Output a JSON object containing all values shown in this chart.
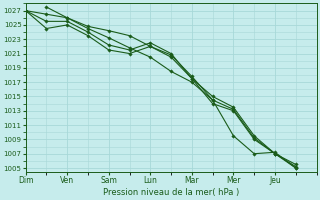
{
  "xlabel": "Pression niveau de la mer( hPa )",
  "background_color": "#c6ecec",
  "grid_color": "#a8d8d8",
  "line_color": "#1a5c1a",
  "ylim": [
    1004.5,
    1028
  ],
  "yticks": [
    1005,
    1007,
    1009,
    1011,
    1013,
    1015,
    1017,
    1019,
    1021,
    1023,
    1025,
    1027
  ],
  "x_days": [
    "Dim",
    "Ven",
    "Sam",
    "Lun",
    "Mar",
    "Mer",
    "Jeu"
  ],
  "x_day_positions": [
    0,
    44,
    88,
    132,
    176,
    220,
    264
  ],
  "xlim_data": [
    0,
    308
  ],
  "series": [
    {
      "x": [
        0,
        22,
        44,
        66,
        88,
        110,
        132,
        154,
        176,
        198,
        220,
        242,
        264,
        286
      ],
      "y": [
        1027,
        1026.5,
        1026,
        1024.8,
        1024.2,
        1023.5,
        1022.0,
        1020.5,
        1017.5,
        1015.0,
        1013.5,
        1009.5,
        1007.0,
        1005.0
      ]
    },
    {
      "x": [
        0,
        22,
        44,
        66,
        88,
        110,
        132,
        154,
        176,
        198,
        220,
        242,
        264,
        286
      ],
      "y": [
        1027,
        1025.5,
        1025.5,
        1024.0,
        1022.2,
        1021.5,
        1022.5,
        1021.0,
        1017.5,
        1014.0,
        1013.0,
        1009.0,
        1007.0,
        1005.5
      ]
    },
    {
      "x": [
        0,
        22,
        44,
        66,
        88,
        110,
        132,
        154,
        176,
        198,
        220,
        242,
        264,
        286
      ],
      "y": [
        1027,
        1024.5,
        1025.0,
        1023.5,
        1021.5,
        1021.0,
        1022.0,
        1020.8,
        1017.8,
        1014.5,
        1013.2,
        1009.2,
        1007.0,
        1005.2
      ]
    },
    {
      "x": [
        22,
        44,
        66,
        88,
        110,
        132,
        154,
        176,
        198,
        220,
        242,
        264,
        286
      ],
      "y": [
        1027.5,
        1026.0,
        1024.5,
        1023.2,
        1021.8,
        1020.5,
        1018.5,
        1017.0,
        1014.5,
        1009.5,
        1007.0,
        1007.2,
        1005.0
      ]
    }
  ]
}
